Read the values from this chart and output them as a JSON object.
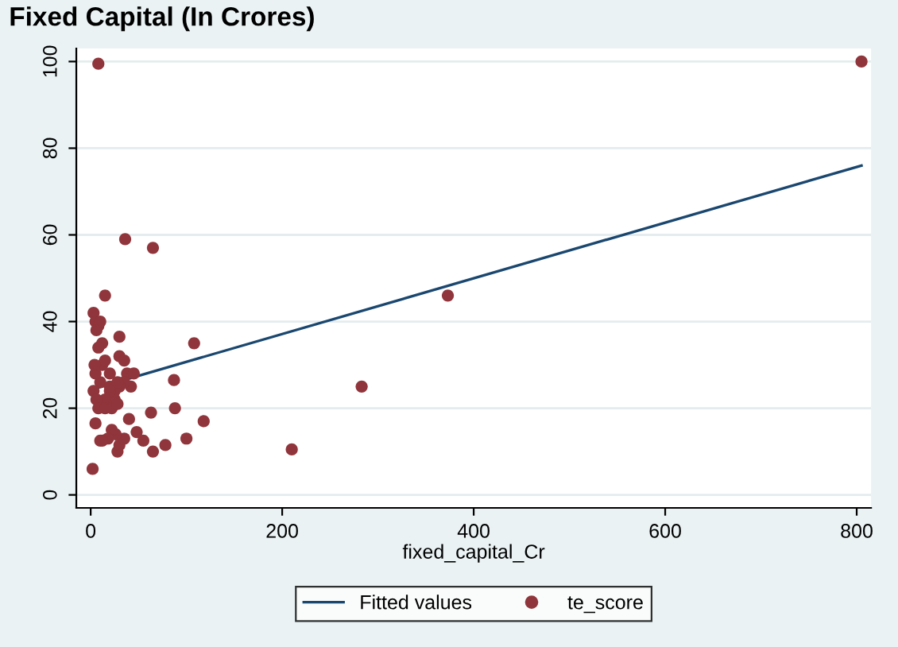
{
  "chart_data": {
    "type": "scatter",
    "title": "Fixed Capital (In Crores)",
    "xlabel": "fixed_capital_Cr",
    "xlim": [
      -15,
      815
    ],
    "ylim": [
      -3,
      103
    ],
    "xticks": [
      0,
      200,
      400,
      600,
      800
    ],
    "yticks": [
      0,
      20,
      40,
      60,
      80,
      100
    ],
    "grid": "y",
    "legend": "bottom",
    "series": [
      {
        "name": "Fitted values",
        "type": "line",
        "color": "#1a476f",
        "x": [
          2,
          805
        ],
        "values": [
          24.4,
          76
        ]
      },
      {
        "name": "te_score",
        "marker": "circle",
        "color": "#90353b",
        "x": [
          8,
          805,
          373,
          283,
          210,
          36,
          65,
          108,
          118,
          100,
          88,
          87,
          78,
          63,
          65,
          55,
          48,
          40,
          28,
          30,
          35,
          26,
          22,
          18,
          12,
          10,
          5,
          2,
          15,
          3,
          5,
          8,
          6,
          10,
          12,
          8,
          12,
          15,
          20,
          25,
          30,
          35,
          38,
          45,
          42,
          35,
          30,
          25,
          20,
          15,
          10,
          5,
          4,
          3,
          6,
          8,
          15,
          22,
          28,
          30,
          20,
          28
        ],
        "values": [
          99.5,
          100,
          46,
          25,
          10.5,
          59,
          57,
          35,
          17,
          13,
          20,
          26.5,
          11.5,
          19,
          10,
          12.5,
          14.5,
          17.5,
          10,
          11.5,
          13,
          14,
          15,
          13,
          12.5,
          12.5,
          16.5,
          6,
          46,
          42,
          40,
          39,
          38,
          40,
          35,
          34,
          30,
          31,
          28,
          22,
          32,
          31,
          28,
          28,
          25,
          26,
          25,
          24,
          24,
          22,
          26,
          28,
          30,
          24,
          22,
          20,
          20,
          20,
          21,
          36.5,
          25,
          26
        ]
      }
    ]
  }
}
